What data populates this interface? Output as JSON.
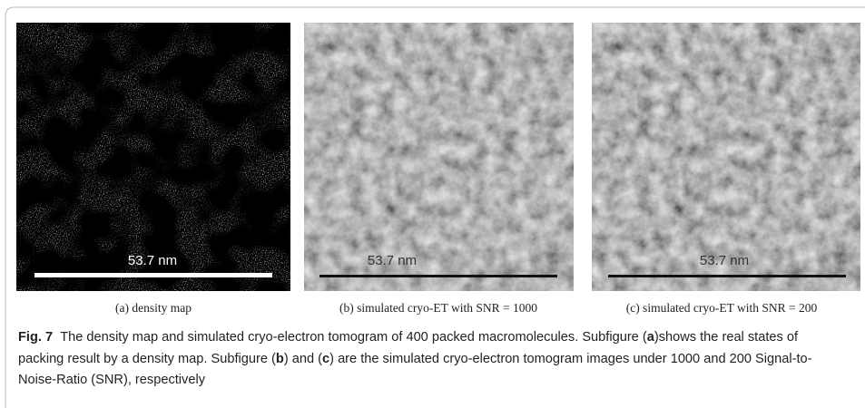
{
  "panels": [
    {
      "scale_label": "53.7 nm",
      "subcaption": "(a) density map"
    },
    {
      "scale_label": "53.7 nm",
      "subcaption": "(b) simulated cryo-ET with SNR = 1000"
    },
    {
      "scale_label": "53.7 nm",
      "subcaption": "(c) simulated cryo-ET with SNR = 200"
    }
  ],
  "caption": {
    "label": "Fig. 7",
    "runs": [
      "The density map and simulated cryo-electron tomogram of 400 packed macromolecules. Subfigure (",
      "a",
      ")shows the real states of packing result by a density map. Subfigure (",
      "b",
      ") and (",
      "c",
      ") are the simulated cryo-electron tomogram images under 1000 and 200 Signal-to-Noise-Ratio (SNR), respectively"
    ]
  }
}
